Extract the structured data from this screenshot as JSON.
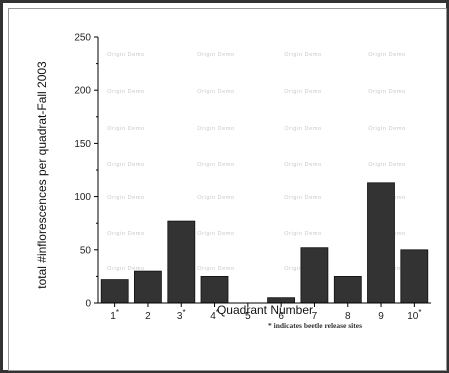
{
  "chart_data": {
    "type": "bar",
    "categories": [
      "1",
      "2",
      "3",
      "4",
      "5",
      "6",
      "7",
      "8",
      "9",
      "10"
    ],
    "category_marks": [
      "*",
      "",
      "*",
      "*",
      "",
      "",
      "",
      "",
      "",
      "*"
    ],
    "values": [
      22,
      30,
      77,
      25,
      0,
      5,
      52,
      25,
      113,
      50
    ],
    "title": "",
    "xlabel": "Quadrant Number",
    "ylabel": "total #inflorescences per quadrat-Fall 2003",
    "ylim": [
      0,
      250
    ],
    "yticks": [
      0,
      50,
      100,
      150,
      200,
      250
    ],
    "note": "* indicates beetle release sites",
    "watermark": "Origin Demo",
    "bar_color": "#333333",
    "grid": false,
    "legend": "none"
  }
}
